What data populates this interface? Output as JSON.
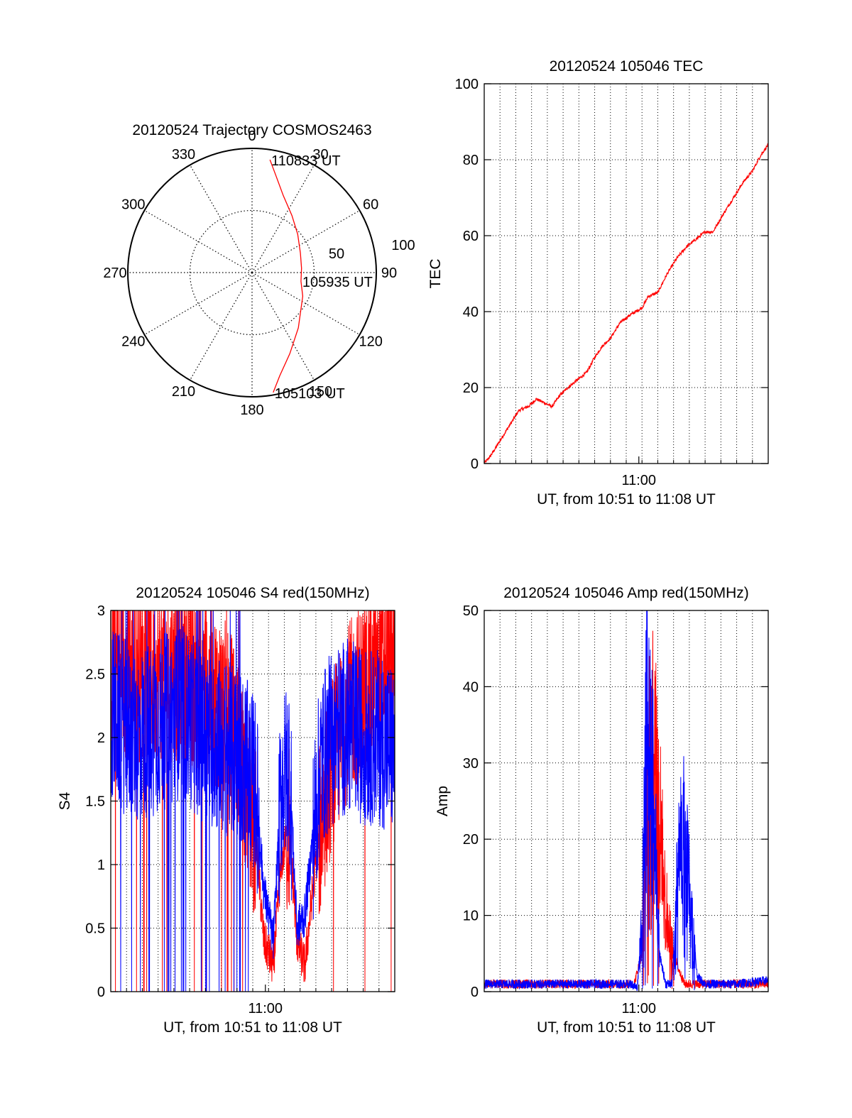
{
  "chart_data": [
    {
      "type": "polar",
      "title": "20120524 Trajectory COSMOS2463",
      "angle_labels": [
        "0",
        "30",
        "60",
        "90",
        "120",
        "150",
        "180",
        "210",
        "240",
        "270",
        "300",
        "330"
      ],
      "radius_labels": [
        "50",
        "100"
      ],
      "rlim": [
        0,
        100
      ],
      "grid": true,
      "series": [
        {
          "color": "#ff0000",
          "points": [
            [
              170,
              98
            ],
            [
              165,
              86
            ],
            [
              155,
              72
            ],
            [
              140,
              58
            ],
            [
              115,
              45
            ],
            [
              100,
              40
            ],
            [
              85,
              40
            ],
            [
              68,
              42
            ],
            [
              50,
              48
            ],
            [
              35,
              56
            ],
            [
              22,
              67
            ],
            [
              14,
              80
            ],
            [
              9,
              92
            ]
          ]
        }
      ],
      "annotations": [
        {
          "text": "110833 UT",
          "az": 9,
          "r": 92
        },
        {
          "text": "105935 UT",
          "az": 100,
          "r": 40
        },
        {
          "text": "105103 UT",
          "az": 170,
          "r": 98
        }
      ]
    },
    {
      "type": "line",
      "title": "20120524 105046 TEC",
      "xlabel": "UT, from 10:51 to 11:08 UT",
      "ylabel": "TEC",
      "xlim_minutes": [
        0,
        18
      ],
      "x_tick_labels": [
        {
          "label": "11:00",
          "minute": 9.8
        }
      ],
      "ylim": [
        0,
        100
      ],
      "y_ticks": [
        "0",
        "20",
        "40",
        "60",
        "80",
        "100"
      ],
      "grid": true,
      "series": [
        {
          "color": "#ff0000",
          "x": [
            0,
            0.4,
            1.0,
            1.6,
            2.2,
            2.8,
            3.3,
            3.8,
            4.3,
            4.8,
            5.3,
            5.9,
            6.5,
            7.0,
            7.5,
            8.0,
            8.6,
            9.2,
            9.6,
            10.0,
            10.4,
            11.0,
            11.6,
            12.2,
            12.8,
            13.4,
            14.0,
            14.5,
            15.2,
            15.8,
            16.4,
            17.0,
            17.5,
            18.0
          ],
          "y": [
            0,
            2,
            6,
            10,
            14,
            15,
            17,
            16,
            15,
            18,
            20,
            22,
            24,
            28,
            31,
            33,
            37,
            39,
            40,
            41,
            44,
            45,
            50,
            54,
            57,
            59,
            61,
            61,
            66,
            70,
            74,
            77,
            81,
            84
          ]
        }
      ]
    },
    {
      "type": "line",
      "title": "20120524 105046 S4 red(150MHz)",
      "xlabel": "UT, from 10:51 to 11:08 UT",
      "ylabel": "S4",
      "xlim_minutes": [
        0,
        18
      ],
      "x_tick_labels": [
        {
          "label": "11:00",
          "minute": 9.8
        }
      ],
      "ylim": [
        0,
        3
      ],
      "y_ticks": [
        "0",
        "0.5",
        "1",
        "1.5",
        "2",
        "2.5",
        "3"
      ],
      "grid": true,
      "series": [
        {
          "color": "#ff0000",
          "x": [
            0,
            1.5,
            3,
            4.5,
            6,
            7.5,
            8.5,
            9.2,
            9.7,
            10.3,
            10.8,
            11.3,
            11.8,
            12.3,
            12.8,
            13.3,
            14,
            15,
            16,
            17,
            18
          ],
          "y": [
            2.6,
            2.5,
            2.5,
            2.5,
            2.4,
            2.2,
            1.7,
            1.2,
            0.4,
            0.2,
            1.0,
            1.3,
            0.4,
            0.2,
            0.8,
            1.3,
            1.8,
            2.2,
            2.4,
            2.5,
            2.6
          ]
        },
        {
          "color": "#0000ff",
          "x": [
            0,
            1.5,
            3,
            4.5,
            6,
            7.5,
            8.5,
            9.2,
            9.7,
            10.3,
            10.8,
            11.3,
            11.8,
            12.3,
            12.8,
            13.3,
            14,
            15,
            16,
            17,
            18
          ],
          "y": [
            2.2,
            2.0,
            2.1,
            2.2,
            2.0,
            1.9,
            1.8,
            1.6,
            0.8,
            0.4,
            1.6,
            1.8,
            0.5,
            0.6,
            1.2,
            1.8,
            2.0,
            2.1,
            2.0,
            2.0,
            1.9
          ]
        }
      ]
    },
    {
      "type": "line",
      "title": "20120524 105046 Amp red(150MHz)",
      "xlabel": "UT, from 10:51 to 11:08 UT",
      "ylabel": "Amp",
      "xlim_minutes": [
        0,
        18
      ],
      "x_tick_labels": [
        {
          "label": "11:00",
          "minute": 9.8
        }
      ],
      "ylim": [
        0,
        50
      ],
      "y_ticks": [
        "0",
        "10",
        "20",
        "30",
        "40",
        "50"
      ],
      "grid": true,
      "series": [
        {
          "color": "#ff0000",
          "x": [
            0,
            9.5,
            10.0,
            10.3,
            10.7,
            11.1,
            11.5,
            11.9,
            12.3,
            12.7,
            13.0,
            13.5,
            18.0
          ],
          "y": [
            1,
            1,
            5,
            30,
            35,
            25,
            12,
            6,
            3,
            1,
            1,
            1,
            1
          ]
        },
        {
          "color": "#0000ff",
          "x": [
            0,
            3,
            6,
            8,
            9.3,
            9.7,
            10.0,
            10.3,
            10.7,
            11.1,
            11.5,
            11.9,
            12.3,
            12.7,
            13.0,
            13.5,
            14,
            16,
            18
          ],
          "y": [
            1,
            1,
            1,
            1,
            1,
            0.5,
            10,
            38,
            30,
            5,
            1,
            1,
            18,
            22,
            14,
            2,
            1,
            1,
            1.5
          ]
        }
      ]
    }
  ]
}
